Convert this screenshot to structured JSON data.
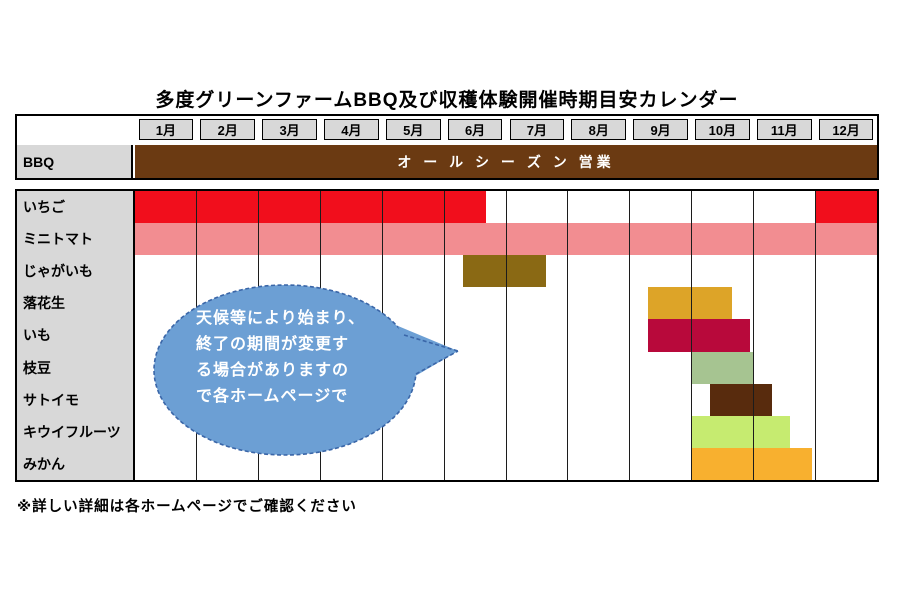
{
  "page": {
    "footer_note": "※詳しい詳細は各ホームページでご確認ください",
    "background": "#FFFFFF"
  },
  "bbq_row": {
    "label": "BBQ",
    "bar_text": "オ ー ル シ ー ズ ン 営業",
    "bar_color": "#6B3A12",
    "label_bg": "#D8D8D8"
  },
  "callout": {
    "lines": [
      "天候等により始まり、",
      "終了の期間が変更す",
      "る場合がありますの",
      "で各ホームページで"
    ],
    "fill": "#6C9FD4",
    "border_color": "#3A66A8",
    "text_color": "#FFFFFF"
  },
  "chart_data": {
    "type": "bar",
    "subtype": "gantt-calendar",
    "title": "多度グリーンファームBBQ及び収穫体験開催時期目安カレンダー",
    "categories": [
      "1月",
      "2月",
      "3月",
      "4月",
      "5月",
      "6月",
      "7月",
      "8月",
      "9月",
      "10月",
      "11月",
      "12月"
    ],
    "x_range_months": [
      0,
      12
    ],
    "grid": true,
    "header_bg": "#D8D8D8",
    "rows": [
      {
        "label": "いちご",
        "color": "#F10E1C",
        "segments": [
          [
            0,
            5.67
          ],
          [
            11,
            12
          ]
        ]
      },
      {
        "label": "ミニトマト",
        "color": "#F28D91",
        "segments": [
          [
            0,
            12
          ]
        ]
      },
      {
        "label": "じゃがいも",
        "color": "#8A6914",
        "segments": [
          [
            5.3,
            6.65
          ]
        ]
      },
      {
        "label": "落花生",
        "color": "#DDA428",
        "segments": [
          [
            8.3,
            9.65
          ]
        ]
      },
      {
        "label": "いも",
        "color": "#B8093B",
        "segments": [
          [
            8.3,
            9.95
          ]
        ]
      },
      {
        "label": "枝豆",
        "color": "#A6C491",
        "segments": [
          [
            9,
            10
          ]
        ]
      },
      {
        "label": "サトイモ",
        "color": "#582B0D",
        "segments": [
          [
            9.3,
            10.3
          ]
        ]
      },
      {
        "label": "キウイフルーツ",
        "color": "#C6EB70",
        "segments": [
          [
            9,
            10.6
          ]
        ]
      },
      {
        "label": "みかん",
        "color": "#F8B02F",
        "segments": [
          [
            9,
            10.95
          ]
        ]
      }
    ]
  }
}
